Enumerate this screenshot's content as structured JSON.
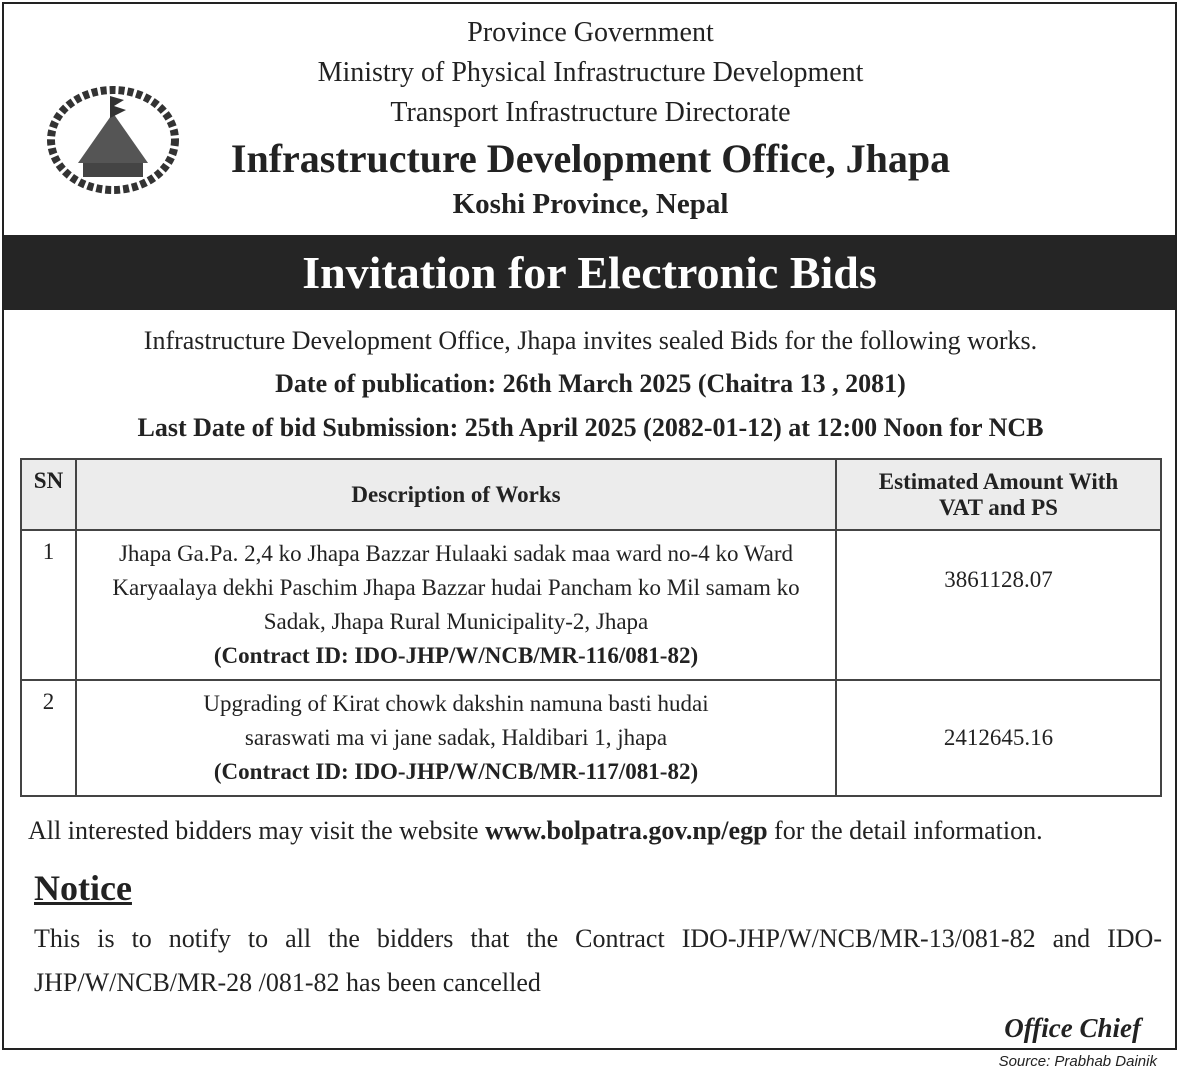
{
  "header": {
    "line1": "Province Government",
    "line2": "Ministry of Physical Infrastructure Development",
    "line3": "Transport Infrastructure Directorate",
    "office": "Infrastructure Development Office, Jhapa",
    "location": "Koshi Province, Nepal"
  },
  "banner": "Invitation for Electronic Bids",
  "intro": {
    "text": "Infrastructure Development Office, Jhapa invites sealed Bids for the following works.",
    "publication": "Date of publication: 26th March 2025 (Chaitra 13 , 2081)",
    "deadline": "Last Date of  bid Submission: 25th  April 2025  (2082-01-12) at 12:00 Noon for NCB"
  },
  "table": {
    "headers": {
      "sn": "SN",
      "desc": "Description of Works",
      "amount": "Estimated Amount With VAT and PS"
    },
    "rows": [
      {
        "sn": "1",
        "desc": "Jhapa Ga.Pa. 2,4 ko Jhapa Bazzar Hulaaki sadak maa ward no-4 ko Ward Karyaalaya dekhi Paschim Jhapa Bazzar hudai Pancham ko Mil samam ko Sadak, Jhapa Rural Municipality-2, Jhapa",
        "contract": "(Contract ID: IDO-JHP/W/NCB/MR-116/081-82)",
        "amount": "3861128.07"
      },
      {
        "sn": "2",
        "desc": "Upgrading of Kirat chowk dakshin namuna basti hudai saraswati ma vi jane sadak, Haldibari 1, jhapa",
        "contract": "(Contract ID: IDO-JHP/W/NCB/MR-117/081-82)",
        "amount": "2412645.16"
      }
    ]
  },
  "website": {
    "before": "All interested bidders may visit the website ",
    "url": "www.bolpatra.gov.np/egp",
    "after": " for the detail information."
  },
  "notice": {
    "title": "Notice",
    "text": "This is to notify to all the bidders that the Contract IDO-JHP/W/NCB/MR-13/081-82 and IDO-JHP/W/NCB/MR-28 /081-82 has been cancelled"
  },
  "signature": "Office Chief",
  "source": "Source: Prabhab Dainik"
}
